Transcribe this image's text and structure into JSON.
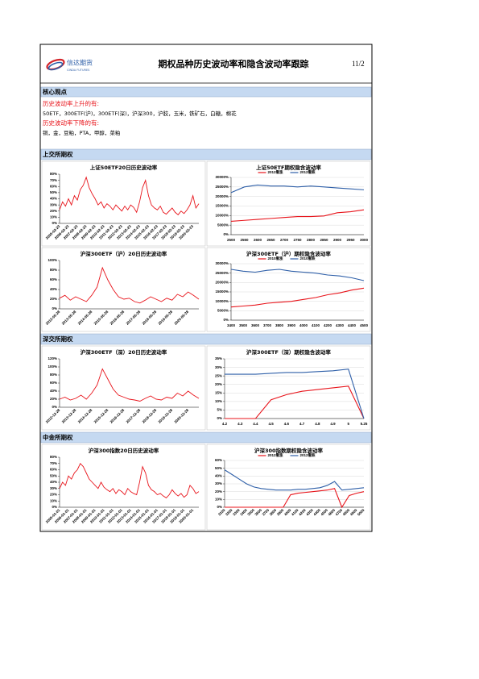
{
  "header": {
    "logo_cn": "信达期货",
    "logo_en": "CINDA FUTURES",
    "title": "期权品种历史波动率和隐含波动率跟踪",
    "page": "11/2"
  },
  "core": {
    "title": "核心观点",
    "up_label": "历史波动率上升的有:",
    "up_items": "50ETF，300ETF(沪)，300ETF(深)，沪深300，沪胶，玉米，铁矿石，白糖，棉花",
    "down_label": "历史波动率下降的有:",
    "down_items": "铜，金，豆粕，PTA，甲醇，菜粕"
  },
  "sections": [
    "上交所期权",
    "深交所期权",
    "中金所期权"
  ],
  "chart_data": [
    {
      "type": "line",
      "title": "上证50ETF20日历史波动率",
      "categories": [
        "2005-02-23",
        null,
        null,
        "2006-02-23",
        null,
        null,
        "2007-02-23",
        null,
        null,
        "2008-02-23",
        null,
        null,
        "2009-02-23",
        null,
        null,
        "2010-02-23",
        null,
        null,
        "2011-02-23",
        null,
        null,
        "2012-02-23",
        null,
        null,
        "2013-02-23",
        null,
        null,
        "2014-02-23",
        null,
        null,
        "2015-02-23",
        null,
        null,
        "2016-02-23",
        null,
        null,
        "2017-02-23",
        null,
        null,
        "2018-02-23",
        null,
        null,
        "2019-02-23",
        null,
        null,
        "2020-02-23",
        null,
        null
      ],
      "series": [
        {
          "color": "#e8141b",
          "values": [
            22,
            35,
            28,
            40,
            30,
            45,
            38,
            55,
            62,
            75,
            58,
            48,
            40,
            30,
            35,
            25,
            32,
            28,
            22,
            30,
            25,
            20,
            28,
            22,
            30,
            26,
            18,
            35,
            58,
            70,
            45,
            30,
            25,
            22,
            28,
            18,
            15,
            20,
            25,
            18,
            14,
            20,
            16,
            22,
            30,
            45,
            25,
            32
          ]
        }
      ],
      "ylim": [
        0,
        80
      ],
      "yticks": [
        {
          "value": 0,
          "label": "0%"
        },
        {
          "value": 10,
          "label": "10%"
        },
        {
          "value": 20,
          "label": "20%"
        },
        {
          "value": 30,
          "label": "30%"
        },
        {
          "value": 40,
          "label": "40%"
        },
        {
          "value": 50,
          "label": "50%"
        },
        {
          "value": 60,
          "label": "60%"
        },
        {
          "value": 70,
          "label": "70%"
        },
        {
          "value": 80,
          "label": "80%"
        }
      ],
      "grid": false,
      "rotate_x": true
    },
    {
      "type": "line",
      "title": "上证50ETF期权隐含波动率",
      "categories": [
        "2500",
        "2550",
        "2600",
        "2650",
        "2700",
        "2750",
        "2800",
        "2850",
        "2900",
        "2950",
        "3000"
      ],
      "series": [
        {
          "name": "2012看涨",
          "color": "#e8141b",
          "values": [
            7000,
            7500,
            8000,
            8500,
            9000,
            9500,
            9500,
            9800,
            11500,
            12000,
            13000
          ]
        },
        {
          "name": "2012看跌",
          "color": "#2e5fa8",
          "values": [
            22000,
            25000,
            26000,
            25500,
            25500,
            25000,
            25500,
            25000,
            24500,
            24000,
            23500
          ]
        }
      ],
      "ylim": [
        0,
        30000
      ],
      "yticks": [
        {
          "value": 0,
          "label": "0%"
        },
        {
          "value": 5000,
          "label": "5000%"
        },
        {
          "value": 10000,
          "label": "10000%"
        },
        {
          "value": 15000,
          "label": "15000%"
        },
        {
          "value": 20000,
          "label": "20000%"
        },
        {
          "value": 25000,
          "label": "25000%"
        },
        {
          "value": 30000,
          "label": "30000%"
        }
      ],
      "grid": true,
      "rotate_x": false
    },
    {
      "type": "line",
      "title": "沪深300ETF（沪）20日历史波动率",
      "categories": [
        "2012-05-28",
        null,
        null,
        "2013-05-28",
        null,
        null,
        "2014-05-28",
        null,
        null,
        "2015-05-28",
        null,
        null,
        "2016-05-28",
        null,
        null,
        "2017-05-28",
        null,
        null,
        "2018-05-28",
        null,
        null,
        "2019-05-28",
        null,
        null,
        "2020-05-28",
        null,
        null
      ],
      "series": [
        {
          "color": "#e8141b",
          "values": [
            22,
            28,
            18,
            25,
            20,
            15,
            28,
            45,
            85,
            60,
            40,
            25,
            20,
            22,
            15,
            12,
            18,
            25,
            20,
            15,
            22,
            18,
            30,
            25,
            35,
            28,
            20
          ]
        }
      ],
      "ylim": [
        0,
        100
      ],
      "yticks": [
        {
          "value": 0,
          "label": "0%"
        },
        {
          "value": 20,
          "label": "20%"
        },
        {
          "value": 40,
          "label": "40%"
        },
        {
          "value": 60,
          "label": "60%"
        },
        {
          "value": 80,
          "label": "80%"
        },
        {
          "value": 100,
          "label": "100%"
        }
      ],
      "grid": false,
      "rotate_x": true
    },
    {
      "type": "line",
      "title": "沪深300ETF（沪）期权隐含波动率",
      "categories": [
        "3400",
        "3500",
        "3600",
        "3700",
        "3800",
        "3900",
        "4000",
        "4100",
        "4200",
        "4300",
        "4400",
        "4500"
      ],
      "series": [
        {
          "name": "2010看涨",
          "color": "#e8141b",
          "values": [
            7000,
            7500,
            8000,
            9000,
            9500,
            10000,
            11000,
            12000,
            13500,
            14500,
            16000,
            17000
          ]
        },
        {
          "name": "2010看跌",
          "color": "#2e5fa8",
          "values": [
            27000,
            26000,
            25500,
            26500,
            27000,
            26000,
            25500,
            25000,
            24000,
            23500,
            22500,
            21000
          ]
        }
      ],
      "ylim": [
        0,
        30000
      ],
      "yticks": [
        {
          "value": 0,
          "label": "0%"
        },
        {
          "value": 5000,
          "label": "5000%"
        },
        {
          "value": 10000,
          "label": "10000%"
        },
        {
          "value": 15000,
          "label": "15000%"
        },
        {
          "value": 20000,
          "label": "20000%"
        },
        {
          "value": 25000,
          "label": "25000%"
        },
        {
          "value": 30000,
          "label": "30000%"
        }
      ],
      "grid": true,
      "rotate_x": false
    },
    {
      "type": "line",
      "title": "沪深300ETF（深）20日历史波动率",
      "categories": [
        "2012-12-28",
        null,
        null,
        "2013-12-28",
        null,
        null,
        "2014-12-28",
        null,
        null,
        "2015-12-28",
        null,
        null,
        "2016-12-28",
        null,
        null,
        "2017-12-28",
        null,
        null,
        "2018-12-28",
        null,
        null,
        "2019-12-28",
        null,
        null,
        "2020-12-28",
        null,
        null
      ],
      "series": [
        {
          "color": "#e8141b",
          "values": [
            20,
            25,
            18,
            22,
            30,
            20,
            35,
            55,
            95,
            70,
            45,
            30,
            25,
            20,
            18,
            15,
            22,
            28,
            20,
            18,
            25,
            22,
            35,
            28,
            40,
            30,
            22
          ]
        }
      ],
      "ylim": [
        0,
        120
      ],
      "yticks": [
        {
          "value": 0,
          "label": "0%"
        },
        {
          "value": 20,
          "label": "20%"
        },
        {
          "value": 40,
          "label": "40%"
        },
        {
          "value": 60,
          "label": "60%"
        },
        {
          "value": 80,
          "label": "80%"
        },
        {
          "value": 100,
          "label": "100%"
        },
        {
          "value": 120,
          "label": "120%"
        }
      ],
      "grid": false,
      "rotate_x": true
    },
    {
      "type": "line",
      "title": "沪深300ETF（深）期权隐含波动率",
      "categories": [
        "4.2",
        "4.3",
        "4.4",
        "4.5",
        "4.6",
        "4.7",
        "4.8",
        "4.9",
        "5",
        "5.25"
      ],
      "series": [
        {
          "color": "#e8141b",
          "values": [
            0,
            0,
            0,
            11,
            14,
            16,
            17,
            18,
            19,
            0
          ]
        },
        {
          "color": "#2e5fa8",
          "values": [
            26,
            26,
            26,
            26.5,
            27,
            27,
            27.5,
            28,
            29,
            0
          ]
        }
      ],
      "ylim": [
        0,
        35
      ],
      "yticks": [
        {
          "value": 0,
          "label": "0%"
        },
        {
          "value": 5,
          "label": "5%"
        },
        {
          "value": 10,
          "label": "10%"
        },
        {
          "value": 15,
          "label": "15%"
        },
        {
          "value": 20,
          "label": "20%"
        },
        {
          "value": 25,
          "label": "25%"
        },
        {
          "value": 30,
          "label": "30%"
        },
        {
          "value": 35,
          "label": "35%"
        }
      ],
      "grid": true,
      "rotate_x": false
    },
    {
      "type": "line",
      "title": "沪深300指数20日历史波动率",
      "categories": [
        "2005-01-01",
        null,
        null,
        "2006-01-01",
        null,
        null,
        "2007-01-01",
        null,
        null,
        "2008-01-01",
        null,
        null,
        "2009-01-01",
        null,
        null,
        "2010-01-01",
        null,
        null,
        "2011-01-01",
        null,
        null,
        "2012-01-01",
        null,
        null,
        "2013-01-01",
        null,
        null,
        "2014-01-01",
        null,
        null,
        "2015-01-01",
        null,
        null,
        "2016-01-01",
        null,
        null,
        "2017-01-01",
        null,
        null,
        "2018-01-01",
        null,
        null,
        "2019-01-01",
        null,
        null,
        "2020-01-01",
        null,
        null
      ],
      "series": [
        {
          "color": "#e8141b",
          "values": [
            30,
            40,
            35,
            50,
            45,
            55,
            60,
            70,
            65,
            55,
            45,
            40,
            35,
            30,
            40,
            32,
            28,
            25,
            30,
            22,
            28,
            25,
            20,
            30,
            25,
            22,
            20,
            40,
            65,
            55,
            35,
            28,
            25,
            20,
            22,
            18,
            15,
            20,
            28,
            22,
            18,
            22,
            16,
            20,
            35,
            30,
            22,
            25
          ]
        }
      ],
      "ylim": [
        0,
        80
      ],
      "yticks": [
        {
          "value": 0,
          "label": "0%"
        },
        {
          "value": 10,
          "label": "10%"
        },
        {
          "value": 20,
          "label": "20%"
        },
        {
          "value": 30,
          "label": "30%"
        },
        {
          "value": 40,
          "label": "40%"
        },
        {
          "value": 50,
          "label": "50%"
        },
        {
          "value": 60,
          "label": "60%"
        },
        {
          "value": 70,
          "label": "70%"
        },
        {
          "value": 80,
          "label": "80%"
        }
      ],
      "grid": false,
      "rotate_x": true
    },
    {
      "type": "line",
      "title": "沪深300指数期权隐含波动率",
      "categories": [
        "3100",
        "3200",
        "3300",
        "3400",
        "3500",
        "3600",
        "3700",
        "3800",
        "3900",
        "4000",
        "4100",
        "4200",
        "4300",
        "4400",
        "4500",
        "4600",
        "4700",
        "4800",
        "4900",
        "5000"
      ],
      "series": [
        {
          "name": "2012看涨",
          "color": "#e8141b",
          "values": [
            0,
            0,
            0,
            0,
            0,
            0,
            0,
            0,
            0,
            16,
            18,
            19,
            20,
            21,
            22,
            24,
            0,
            15,
            18,
            20
          ]
        },
        {
          "name": "2012看跌",
          "color": "#2e5fa8",
          "values": [
            48,
            42,
            36,
            30,
            26,
            24,
            23,
            22,
            22,
            22,
            23,
            23,
            24,
            25,
            28,
            33,
            22,
            23,
            24,
            25
          ]
        }
      ],
      "ylim": [
        0,
        60
      ],
      "yticks": [
        {
          "value": 0,
          "label": "0%"
        },
        {
          "value": 10,
          "label": "10%"
        },
        {
          "value": 20,
          "label": "20%"
        },
        {
          "value": 30,
          "label": "30%"
        },
        {
          "value": 40,
          "label": "40%"
        },
        {
          "value": 50,
          "label": "50%"
        },
        {
          "value": 60,
          "label": "60%"
        }
      ],
      "grid": true,
      "rotate_x": true
    }
  ]
}
